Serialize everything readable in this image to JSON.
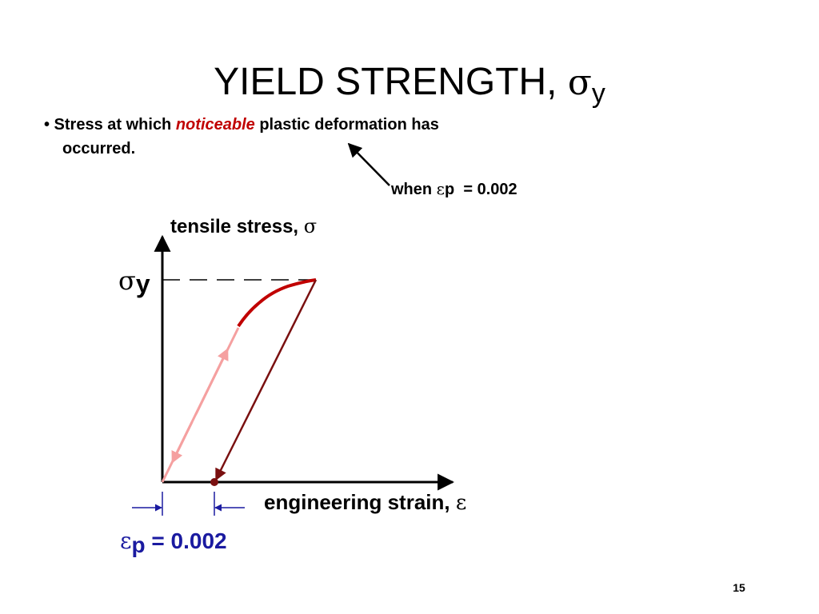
{
  "title": {
    "text": "YIELD STRENGTH, ",
    "symbol": "σ",
    "subscript": "y"
  },
  "bullet": {
    "before": "• Stress at which ",
    "emphasis": "noticeable",
    "after": " plastic deformation has",
    "line2": "occurred."
  },
  "annotation": {
    "text": "when ",
    "symbol": "ε",
    "subscript": "p",
    "value": "  = 0.002"
  },
  "diagram": {
    "y_axis_label": {
      "text": "tensile stress, ",
      "symbol": "σ"
    },
    "yield_label": {
      "symbol": "σ",
      "subscript": "y"
    },
    "x_axis_label": {
      "text": "engineering strain, ",
      "symbol": "ε"
    },
    "offset_label": {
      "symbol": "ε",
      "subscript": "p",
      "value": " = 0.002"
    }
  },
  "page_number": "15"
}
